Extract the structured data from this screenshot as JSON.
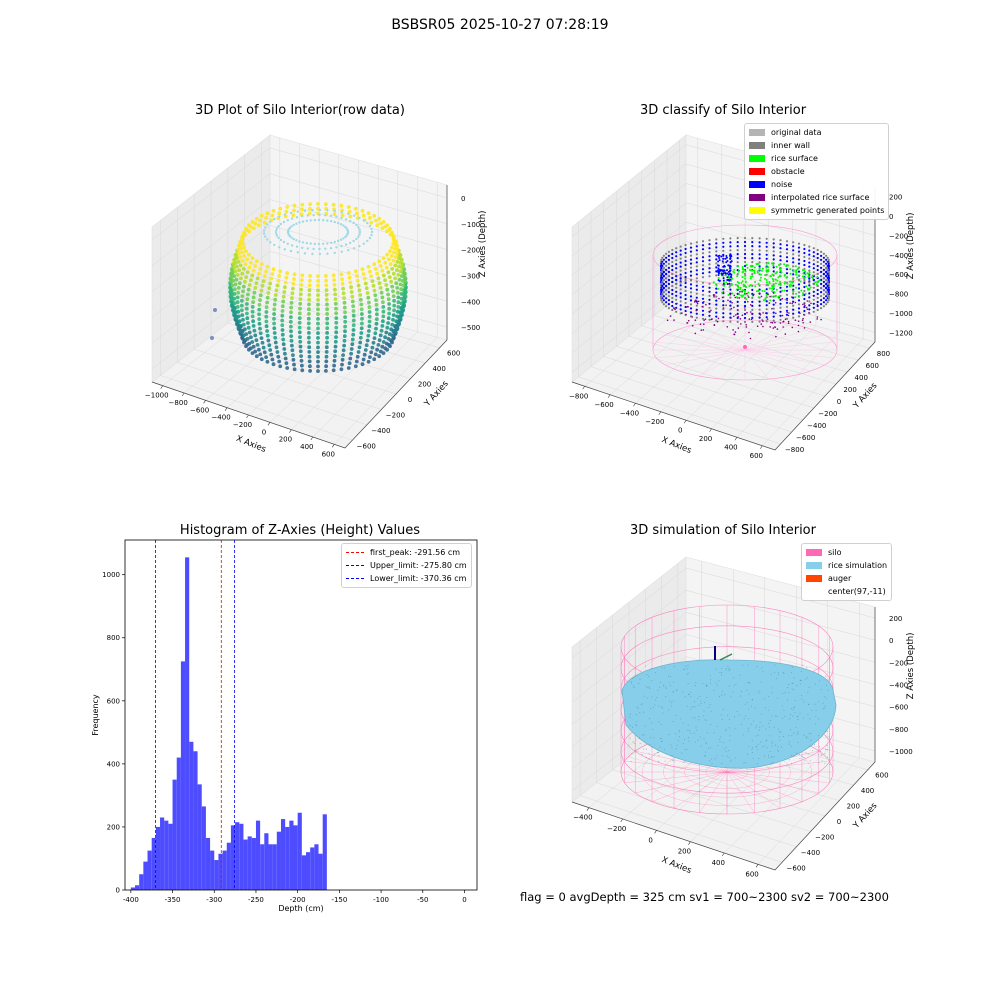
{
  "figure": {
    "suptitle": "BSBSR05 2025-10-27 07:28:19",
    "footer": "flag = 0     avgDepth = 325 cm  sv1 = 700~2300  sv2 = 700~2300"
  },
  "plot_raw": {
    "title": "3D Plot of Silo Interior(row data)",
    "xlabel": "X Axies",
    "ylabel": "Y Axies",
    "zlabel": "Z Axies (Depth)",
    "xticks": [
      "−1000",
      "−800",
      "−600",
      "−400",
      "−200",
      "0",
      "200",
      "400",
      "600"
    ],
    "yticks": [
      "−600",
      "−400",
      "−200",
      "0",
      "200",
      "400",
      "600"
    ],
    "zticks": [
      "0",
      "−100",
      "−200",
      "−300",
      "−400",
      "−500"
    ]
  },
  "plot_classify": {
    "title": "3D classify of Silo Interior",
    "xlabel": "X Axies",
    "ylabel": "Y Axies",
    "zlabel": "Z Axies (Depth)",
    "xticks": [
      "−800",
      "−600",
      "−400",
      "−200",
      "0",
      "200",
      "400",
      "600"
    ],
    "yticks": [
      "−800",
      "−600",
      "−400",
      "−200",
      "0",
      "200",
      "400",
      "600",
      "800"
    ],
    "zticks": [
      "200",
      "0",
      "−200",
      "−400",
      "−600",
      "−800",
      "−1000",
      "−1200"
    ],
    "legend": [
      {
        "label": "original data",
        "color": "#b4b4b4"
      },
      {
        "label": "inner wall",
        "color": "#808080"
      },
      {
        "label": "rice surface",
        "color": "#00ff00"
      },
      {
        "label": "obstacle",
        "color": "#ff0000"
      },
      {
        "label": "noise",
        "color": "#0000ff"
      },
      {
        "label": "interpolated rice surface",
        "color": "#800080"
      },
      {
        "label": "symmetric generated points",
        "color": "#ffff00"
      }
    ]
  },
  "plot_simulation": {
    "title": "3D simulation of Silo Interior",
    "xlabel": "X Axies",
    "ylabel": "Y Axies",
    "zlabel": "Z Axies (Depth)",
    "xticks": [
      "−400",
      "−200",
      "0",
      "200",
      "400",
      "600"
    ],
    "yticks": [
      "−600",
      "−400",
      "−200",
      "0",
      "200",
      "400",
      "600"
    ],
    "zticks": [
      "200",
      "0",
      "−200",
      "−400",
      "−600",
      "−800",
      "−1000"
    ],
    "legend": [
      {
        "label": "silo",
        "color": "#ff69b4"
      },
      {
        "label": "rice simulation",
        "color": "#87ceeb"
      },
      {
        "label": "auger",
        "color": "#ff4500"
      },
      {
        "label": "center(97,-11)",
        "color": "#ffffff"
      }
    ]
  },
  "chart_data": {
    "type": "bar",
    "title": "Histogram of Z-Axies (Height) Values",
    "xlabel": "Depth (cm)",
    "ylabel": "Frequency",
    "color": "#4d4dff",
    "xlim": [
      -407,
      15
    ],
    "ylim": [
      0,
      1110
    ],
    "xticks": [
      -400,
      -350,
      -300,
      -250,
      -200,
      -150,
      -100,
      -50,
      0
    ],
    "yticks": [
      0,
      200,
      400,
      600,
      800,
      1000
    ],
    "bin_start": -400,
    "bin_width": 5,
    "values": [
      8,
      15,
      50,
      90,
      125,
      165,
      200,
      230,
      220,
      210,
      350,
      420,
      725,
      1055,
      470,
      440,
      335,
      265,
      165,
      125,
      95,
      115,
      125,
      150,
      205,
      215,
      210,
      160,
      170,
      165,
      220,
      145,
      180,
      145,
      145,
      185,
      225,
      200,
      220,
      205,
      245,
      110,
      120,
      135,
      145,
      115,
      240
    ],
    "vlines": [
      {
        "label": "first_peak: -291.56 cm",
        "x": -291.56,
        "color": "#ff0000"
      },
      {
        "label": "Upper_limit: -275.80 cm",
        "x": -275.8,
        "color": "#0000ff"
      },
      {
        "label": "Lower_limit: -370.36 cm",
        "x": -370.36,
        "color": "#0000ff"
      }
    ]
  }
}
